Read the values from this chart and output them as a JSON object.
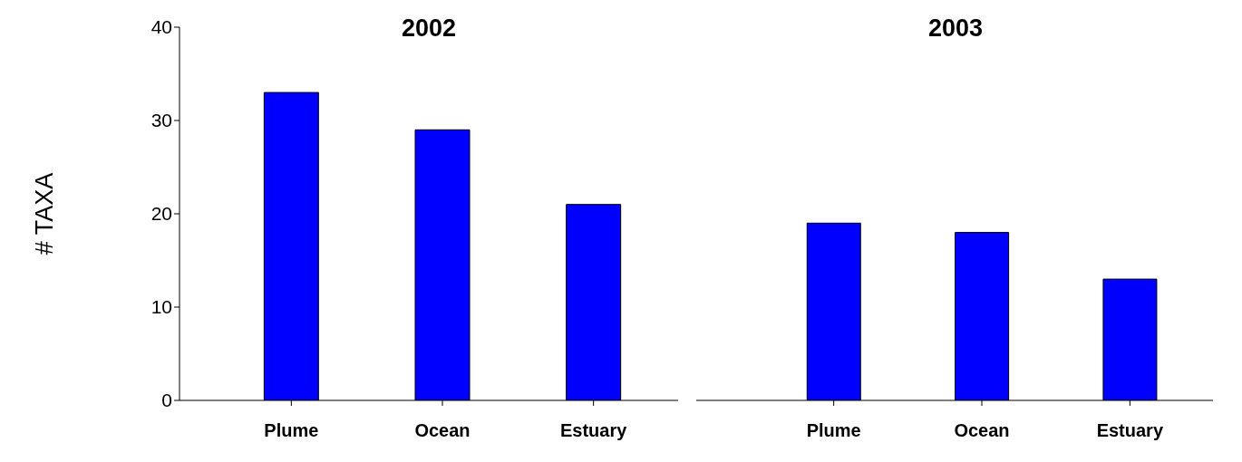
{
  "chart_data": [
    {
      "type": "bar",
      "title": "2002",
      "ylabel": "# TAXA",
      "categories": [
        "Plume",
        "Ocean",
        "Estuary"
      ],
      "values": [
        33,
        29,
        21
      ],
      "color": "#0000ff",
      "ylim": [
        0,
        40
      ],
      "yticks": [
        0,
        10,
        20,
        30,
        40
      ]
    },
    {
      "type": "bar",
      "title": "2003",
      "categories": [
        "Plume",
        "Ocean",
        "Estuary"
      ],
      "values": [
        19,
        18,
        13
      ],
      "color": "#0000ff",
      "ylim": [
        0,
        40
      ],
      "yticks": [
        0,
        10,
        20,
        30,
        40
      ],
      "tick_labels": "x"
    }
  ]
}
